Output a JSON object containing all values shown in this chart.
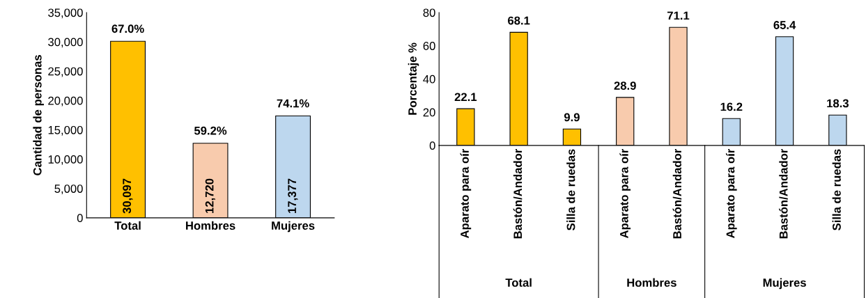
{
  "chart_data": [
    {
      "type": "bar",
      "ylabel": "Cantidad de personas",
      "categories": [
        "Total",
        "Hombres",
        "Mujeres"
      ],
      "values": [
        30097,
        12720,
        17377
      ],
      "colors": [
        "#ffc000",
        "#f8cbad",
        "#bdd7ee"
      ],
      "ylim": [
        0,
        35000
      ],
      "yticks": [
        0,
        {
          "value": 5000,
          "label": "5,000"
        },
        {
          "value": 10000,
          "label": "10,000"
        },
        {
          "value": 15000,
          "label": "15,000"
        },
        {
          "value": 20000,
          "label": "20,000"
        },
        {
          "value": 25000,
          "label": "25,000"
        },
        {
          "value": 30000,
          "label": "30,000"
        },
        {
          "value": 35000,
          "label": "35,000"
        }
      ],
      "value_labels": [
        "30,097",
        "12,720",
        "17,377"
      ],
      "grid": false,
      "legend": false,
      "annotations": [
        "67.0%",
        "59.2%",
        "74.1%"
      ]
    },
    {
      "type": "bar",
      "ylabel": "Porcentaje %",
      "categories": [
        "Aparato para oír",
        "Bastón/Andador",
        "Silla de ruedas",
        "Aparato para oír",
        "Bastón/Andador",
        "Aparato para oír",
        "Bastón/Andador",
        "Silla de ruedas"
      ],
      "values": [
        22.1,
        68.1,
        9.9,
        28.9,
        71.1,
        16.2,
        65.4,
        18.3
      ],
      "colors": [
        "#ffc000",
        "#ffc000",
        "#ffc000",
        "#f8cbad",
        "#f8cbad",
        "#bdd7ee",
        "#bdd7ee",
        "#bdd7ee"
      ],
      "ylim": [
        0,
        80
      ],
      "yticks": [
        0,
        20,
        40,
        60,
        80
      ],
      "data_labels": true,
      "grid": false,
      "legend": false,
      "annotations": [
        "Total",
        "Hombres",
        "Mujeres"
      ]
    }
  ]
}
